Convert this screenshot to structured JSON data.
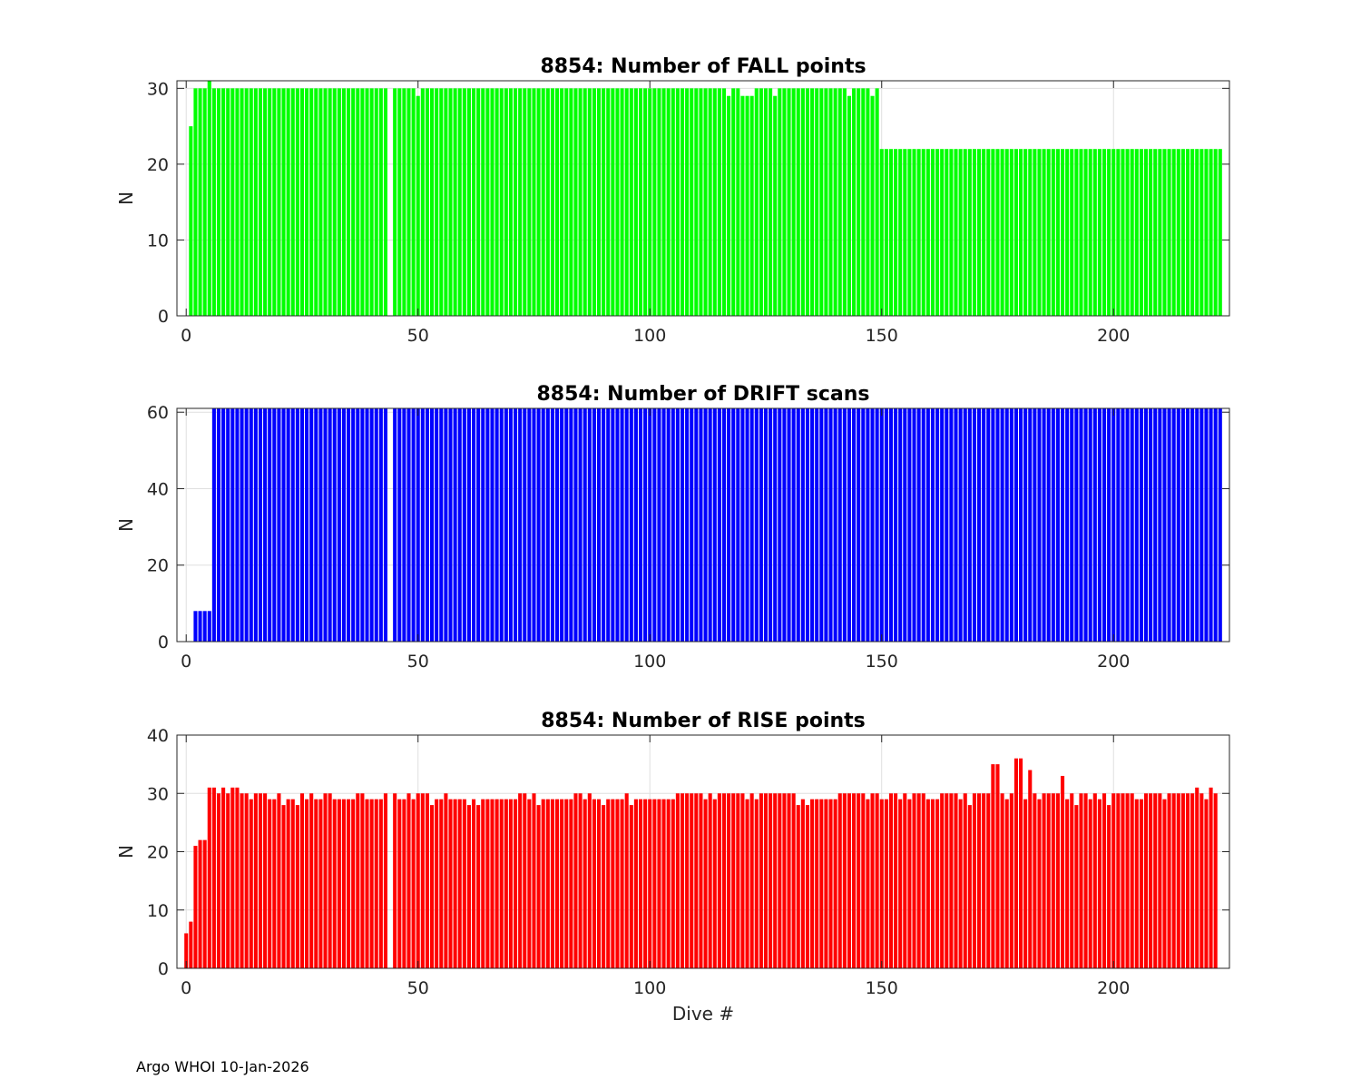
{
  "footer": "Argo WHOI 10-Jan-2026",
  "chart_data": [
    {
      "type": "bar",
      "title": "8854: Number of FALL points",
      "xlabel": "",
      "ylabel": "N",
      "color": "#00ff00",
      "xlim": [
        -2,
        225
      ],
      "ylim": [
        0,
        31
      ],
      "xticks": [
        0,
        50,
        100,
        150,
        200
      ],
      "yticks": [
        0,
        10,
        20,
        30
      ],
      "grid": true,
      "segments": [
        {
          "start": 1,
          "values": [
            25,
            30,
            30,
            30,
            31
          ]
        },
        {
          "start": 6,
          "count": 38,
          "value": 30
        },
        {
          "start": 44,
          "values": [
            0,
            30,
            30,
            30,
            30,
            30,
            29
          ]
        },
        {
          "start": 51,
          "count": 66,
          "value": 30
        },
        {
          "start": 117,
          "values": [
            29,
            30,
            30,
            29,
            29,
            29,
            30,
            30,
            30,
            30,
            29,
            30
          ]
        },
        {
          "start": 129,
          "count": 14,
          "value": 30
        },
        {
          "start": 143,
          "values": [
            29,
            30,
            30,
            30,
            30,
            29,
            30
          ]
        },
        {
          "start": 150,
          "count": 74,
          "value": 22
        }
      ]
    },
    {
      "type": "bar",
      "title": "8854: Number of DRIFT scans",
      "xlabel": "",
      "ylabel": "N",
      "color": "#0000ff",
      "xlim": [
        -2,
        225
      ],
      "ylim": [
        0,
        61
      ],
      "xticks": [
        0,
        50,
        100,
        150,
        200
      ],
      "yticks": [
        0,
        20,
        40,
        60
      ],
      "grid": true,
      "segments": [
        {
          "start": 1,
          "values": [
            0,
            8,
            8,
            8,
            8
          ]
        },
        {
          "start": 6,
          "count": 38,
          "value": 61
        },
        {
          "start": 44,
          "values": [
            0
          ]
        },
        {
          "start": 45,
          "count": 179,
          "value": 61
        }
      ]
    },
    {
      "type": "bar",
      "title": "8854: Number of RISE points",
      "xlabel": "Dive #",
      "ylabel": "N",
      "color": "#ff0000",
      "xlim": [
        -2,
        225
      ],
      "ylim": [
        0,
        40
      ],
      "xticks": [
        0,
        50,
        100,
        150,
        200
      ],
      "yticks": [
        0,
        10,
        20,
        30,
        40
      ],
      "grid": true,
      "segments": [
        {
          "start": 0,
          "values": [
            6,
            8,
            21,
            22,
            22,
            31,
            31,
            30,
            31,
            30,
            31,
            31,
            30,
            30,
            29,
            30,
            30,
            30,
            29,
            29,
            30,
            28,
            29,
            29,
            28,
            30,
            29,
            30,
            29,
            29,
            30,
            30,
            29,
            29,
            29,
            29,
            29,
            30,
            30,
            29,
            29,
            29,
            29,
            30,
            0,
            30,
            29,
            29,
            30,
            29,
            30,
            30,
            30,
            28,
            29,
            29,
            30,
            29,
            29,
            29,
            29,
            28,
            29,
            28,
            29,
            29,
            29,
            29,
            29,
            29,
            29,
            29,
            30,
            30,
            29,
            30,
            28,
            29,
            29,
            29,
            29,
            29,
            29,
            29,
            30,
            30,
            29,
            30,
            29,
            29,
            28,
            29,
            29,
            29,
            29,
            30,
            28,
            29,
            29,
            29,
            29,
            29,
            29,
            29,
            29,
            29,
            30,
            30,
            30,
            30,
            30,
            30,
            29,
            30,
            29,
            30,
            30,
            30,
            30,
            30,
            30,
            29,
            30,
            29,
            30,
            30,
            30,
            30,
            30,
            30,
            30,
            30,
            28,
            29,
            28,
            29,
            29,
            29,
            29,
            29,
            29,
            30,
            30,
            30,
            30,
            30,
            30,
            29,
            30,
            30,
            29,
            29,
            30,
            30,
            29,
            30,
            29,
            30,
            30,
            30,
            29,
            29,
            29,
            30,
            30,
            30,
            30,
            29,
            30,
            28,
            30,
            30,
            30,
            30,
            35,
            35,
            30,
            29,
            30,
            36,
            36,
            29,
            34,
            30,
            29,
            30,
            30,
            30,
            30,
            33,
            29,
            30,
            28,
            30,
            30,
            29,
            30,
            29,
            30,
            28,
            30,
            30,
            30,
            30,
            30,
            29,
            29,
            30,
            30,
            30,
            30,
            29,
            30,
            30,
            30,
            30,
            30,
            30,
            31,
            30,
            29,
            31,
            30
          ]
        }
      ]
    }
  ]
}
